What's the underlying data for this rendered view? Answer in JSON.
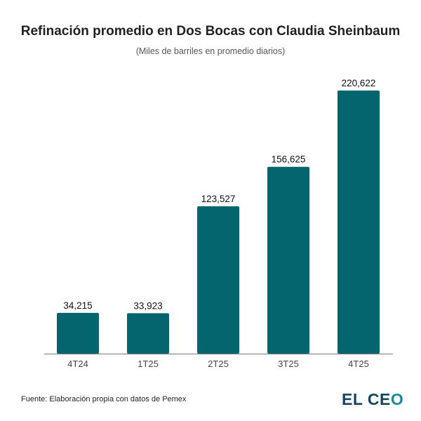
{
  "chart_data": {
    "type": "bar",
    "title": "Refinación promedio en Dos Bocas con Claudia Sheinbaum",
    "subtitle": "(Miles de barriles en promedio diarios)",
    "categories": [
      "4T24",
      "1T25",
      "2T25",
      "3T25",
      "4T25"
    ],
    "values": [
      34215,
      33923,
      123527,
      156625,
      220622
    ],
    "data_labels": [
      "34,215",
      "33,923",
      "123,527",
      "156,625",
      "220,622"
    ],
    "xlabel": "",
    "ylabel": "",
    "ylim": [
      0,
      240000
    ],
    "grid": false,
    "bar_color": "#03666f"
  },
  "footer": {
    "source": "Fuente: Elaboración propia con datos de Pemex",
    "logo": "EL CEO",
    "logo_parts": [
      "EL CE",
      "O"
    ]
  }
}
